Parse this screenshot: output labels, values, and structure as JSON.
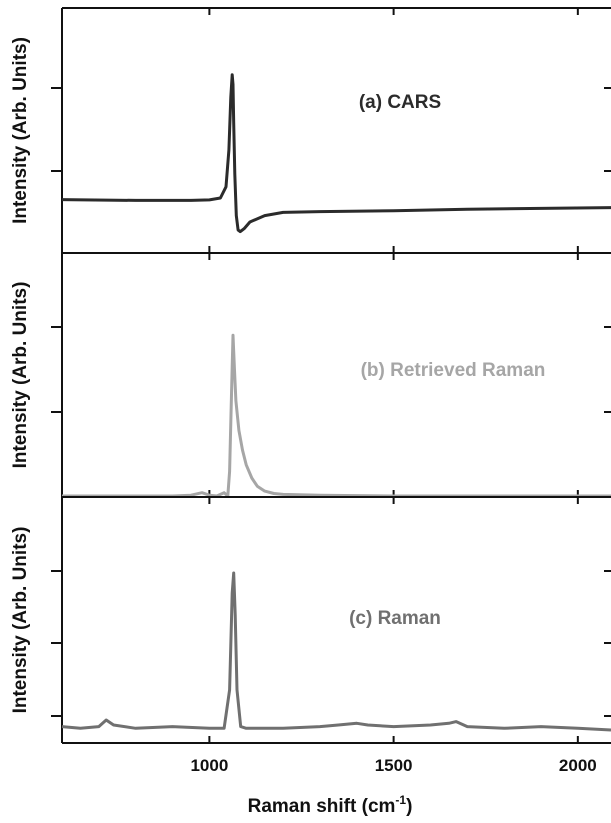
{
  "chart_data": [
    {
      "type": "line",
      "panel_label": "(a) CARS",
      "ylabel": "Intensity (Arb. Units)",
      "xlim": [
        600,
        2090
      ],
      "ylim": [
        0,
        1
      ],
      "color": "#2b2b2b",
      "series": [
        {
          "x": [
            600,
            800,
            950,
            1000,
            1030,
            1045,
            1053,
            1058,
            1062,
            1064,
            1066,
            1069,
            1073,
            1078,
            1084,
            1095,
            1110,
            1150,
            1200,
            1300,
            1500,
            1700,
            1900,
            2090
          ],
          "y": [
            0.24,
            0.235,
            0.235,
            0.238,
            0.25,
            0.32,
            0.55,
            0.88,
            1.02,
            0.96,
            0.72,
            0.4,
            0.14,
            0.05,
            0.04,
            0.06,
            0.1,
            0.14,
            0.16,
            0.165,
            0.17,
            0.18,
            0.185,
            0.19
          ]
        }
      ]
    },
    {
      "type": "line",
      "panel_label": "(b) Retrieved Raman",
      "ylabel": "Intensity (Arb. Units)",
      "xlim": [
        600,
        2090
      ],
      "ylim": [
        0,
        1
      ],
      "color": "#a6a6a6",
      "series": [
        {
          "x": [
            600,
            900,
            950,
            980,
            1000,
            1020,
            1040,
            1050,
            1055,
            1060,
            1064,
            1068,
            1072,
            1080,
            1090,
            1100,
            1115,
            1130,
            1150,
            1175,
            1200,
            1300,
            1500,
            2090
          ],
          "y": [
            0.0,
            0.0,
            0.005,
            0.02,
            0.005,
            0.0,
            0.02,
            0.0,
            0.15,
            0.62,
            0.98,
            0.78,
            0.58,
            0.4,
            0.28,
            0.19,
            0.11,
            0.06,
            0.03,
            0.015,
            0.01,
            0.005,
            0.0,
            0.0
          ]
        }
      ]
    },
    {
      "type": "line",
      "panel_label": "(c) Raman",
      "ylabel": "Intensity (Arb. Units)",
      "xlim": [
        600,
        2090
      ],
      "ylim": [
        0,
        1
      ],
      "color": "#707070",
      "series": [
        {
          "x": [
            600,
            650,
            700,
            720,
            740,
            800,
            900,
            1000,
            1040,
            1055,
            1062,
            1066,
            1070,
            1075,
            1085,
            1100,
            1200,
            1300,
            1350,
            1400,
            1430,
            1500,
            1600,
            1650,
            1670,
            1700,
            1800,
            1900,
            2000,
            2090
          ],
          "y": [
            0.08,
            0.07,
            0.08,
            0.12,
            0.09,
            0.07,
            0.08,
            0.07,
            0.07,
            0.3,
            0.88,
            1.0,
            0.75,
            0.3,
            0.08,
            0.07,
            0.07,
            0.08,
            0.09,
            0.1,
            0.09,
            0.08,
            0.09,
            0.1,
            0.11,
            0.08,
            0.07,
            0.08,
            0.07,
            0.06
          ]
        }
      ]
    }
  ],
  "xaxis": {
    "ticks": [
      1000,
      1500,
      2000
    ],
    "tick_labels": [
      "1000",
      "1500",
      "2000"
    ],
    "label_main": "Raman shift (cm",
    "label_sup": "-1",
    "label_close": ")"
  }
}
